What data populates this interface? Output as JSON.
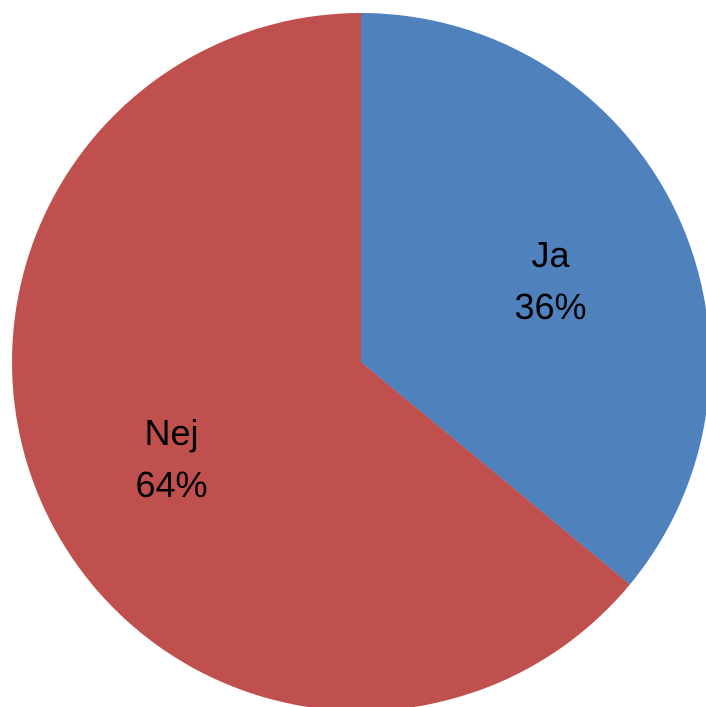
{
  "chart_data": {
    "type": "pie",
    "title": "",
    "legend": "none",
    "start_angle_deg": 0,
    "direction": "clockwise",
    "slices": [
      {
        "name": "Ja",
        "value": 36,
        "label": "36%",
        "color": "#4f81bd"
      },
      {
        "name": "Nej",
        "value": 64,
        "label": "64%",
        "color": "#c0504d"
      }
    ]
  }
}
